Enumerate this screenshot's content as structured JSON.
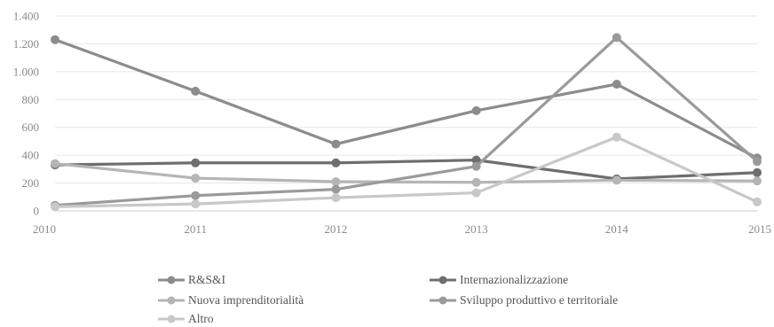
{
  "chart_data": {
    "type": "line",
    "x": [
      "2010",
      "2011",
      "2012",
      "2013",
      "2014",
      "2015"
    ],
    "ylim": [
      0,
      1400
    ],
    "yticks": [
      0,
      200,
      400,
      600,
      800,
      1000,
      1200,
      1400
    ],
    "ytick_labels": [
      "0",
      "200",
      "400",
      "600",
      "800",
      "1.000",
      "1.200",
      "1.400"
    ],
    "grid": true,
    "legend_position": "bottom",
    "series": [
      {
        "name": "R&S&I",
        "color": "#8c8c8c",
        "values": [
          1230,
          860,
          480,
          720,
          910,
          380
        ]
      },
      {
        "name": "Internazionalizzazione",
        "color": "#6e6e6e",
        "values": [
          330,
          345,
          345,
          365,
          230,
          275
        ]
      },
      {
        "name": "Nuova imprenditorialità",
        "color": "#b5b5b5",
        "values": [
          340,
          235,
          210,
          205,
          220,
          215
        ]
      },
      {
        "name": "Sviluppo produttivo e territoriale",
        "color": "#9a9a9a",
        "values": [
          40,
          110,
          155,
          320,
          1245,
          355
        ]
      },
      {
        "name": "Altro",
        "color": "#c8c8c8",
        "values": [
          30,
          50,
          95,
          130,
          530,
          65
        ]
      }
    ]
  }
}
